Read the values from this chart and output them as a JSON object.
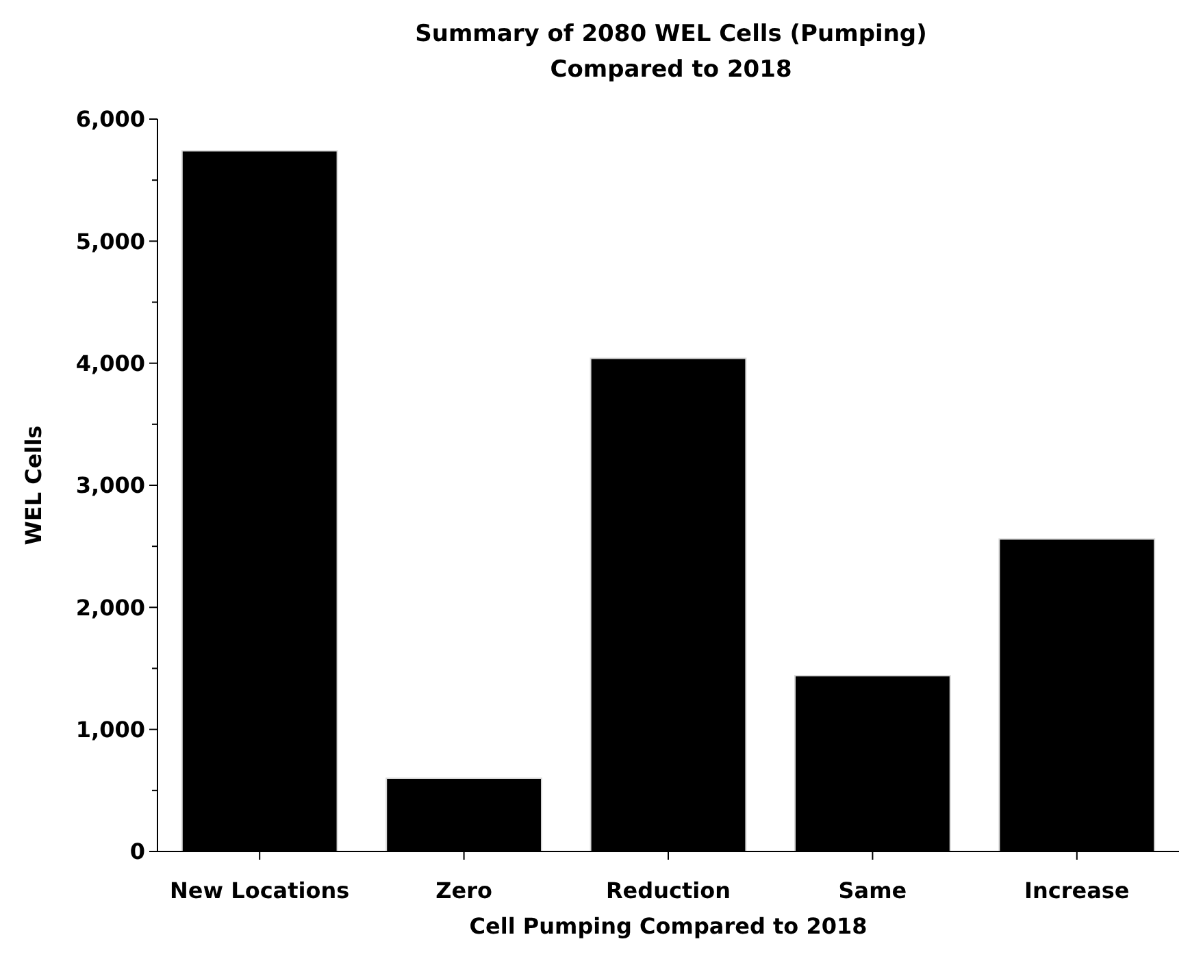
{
  "chart_data": {
    "type": "bar",
    "title": "Summary of 2080 WEL Cells (Pumping)\nCompared to 2018",
    "xlabel": "Cell Pumping Compared to 2018",
    "ylabel": "WEL Cells",
    "categories": [
      "New Locations",
      "Zero",
      "Reduction",
      "Same",
      "Increase"
    ],
    "values": [
      5740,
      600,
      4040,
      1440,
      2560
    ],
    "color": "#000000",
    "ylim": [
      0,
      6000
    ],
    "yticks": [
      0,
      {
        "value": 500,
        "label": null
      },
      {
        "value": 1000,
        "label": "1,000"
      },
      {
        "value": 1500,
        "label": null
      },
      {
        "value": 2000,
        "label": "2,000"
      },
      {
        "value": 2500,
        "label": null
      },
      {
        "value": 3000,
        "label": "3,000"
      },
      {
        "value": 3500,
        "label": null
      },
      {
        "value": 4000,
        "label": "4,000"
      },
      {
        "value": 4500,
        "label": null
      },
      {
        "value": 5000,
        "label": "5,000"
      },
      {
        "value": 5500,
        "label": null
      },
      {
        "value": 6000,
        "label": "6,000"
      }
    ],
    "grid": false
  }
}
